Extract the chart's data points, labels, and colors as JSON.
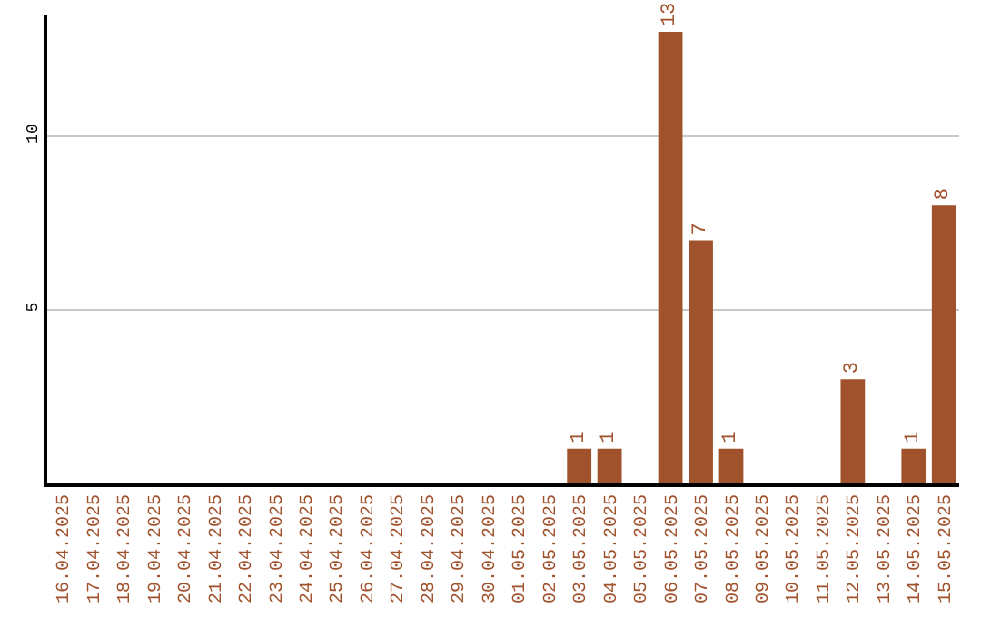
{
  "chart_data": {
    "type": "bar",
    "categories": [
      "16.04.2025",
      "17.04.2025",
      "18.04.2025",
      "19.04.2025",
      "20.04.2025",
      "21.04.2025",
      "22.04.2025",
      "23.04.2025",
      "24.04.2025",
      "25.04.2025",
      "26.04.2025",
      "27.04.2025",
      "28.04.2025",
      "29.04.2025",
      "30.04.2025",
      "01.05.2025",
      "02.05.2025",
      "03.05.2025",
      "04.05.2025",
      "05.05.2025",
      "06.05.2025",
      "07.05.2025",
      "08.05.2025",
      "09.05.2025",
      "10.05.2025",
      "11.05.2025",
      "12.05.2025",
      "13.05.2025",
      "14.05.2025",
      "15.05.2025"
    ],
    "values": [
      0,
      0,
      0,
      0,
      0,
      0,
      0,
      0,
      0,
      0,
      0,
      0,
      0,
      0,
      0,
      0,
      0,
      1,
      1,
      0,
      13,
      7,
      1,
      0,
      0,
      0,
      3,
      0,
      1,
      8
    ],
    "value_labels": [
      null,
      null,
      null,
      null,
      null,
      null,
      null,
      null,
      null,
      null,
      null,
      null,
      null,
      null,
      null,
      null,
      null,
      "1",
      "1",
      null,
      "13",
      "7",
      "1",
      null,
      null,
      null,
      "3",
      null,
      "1",
      "8"
    ],
    "color": "#a0522d",
    "ylim": [
      0,
      13.5
    ],
    "yticks": [
      5,
      10
    ],
    "grid": "y"
  }
}
